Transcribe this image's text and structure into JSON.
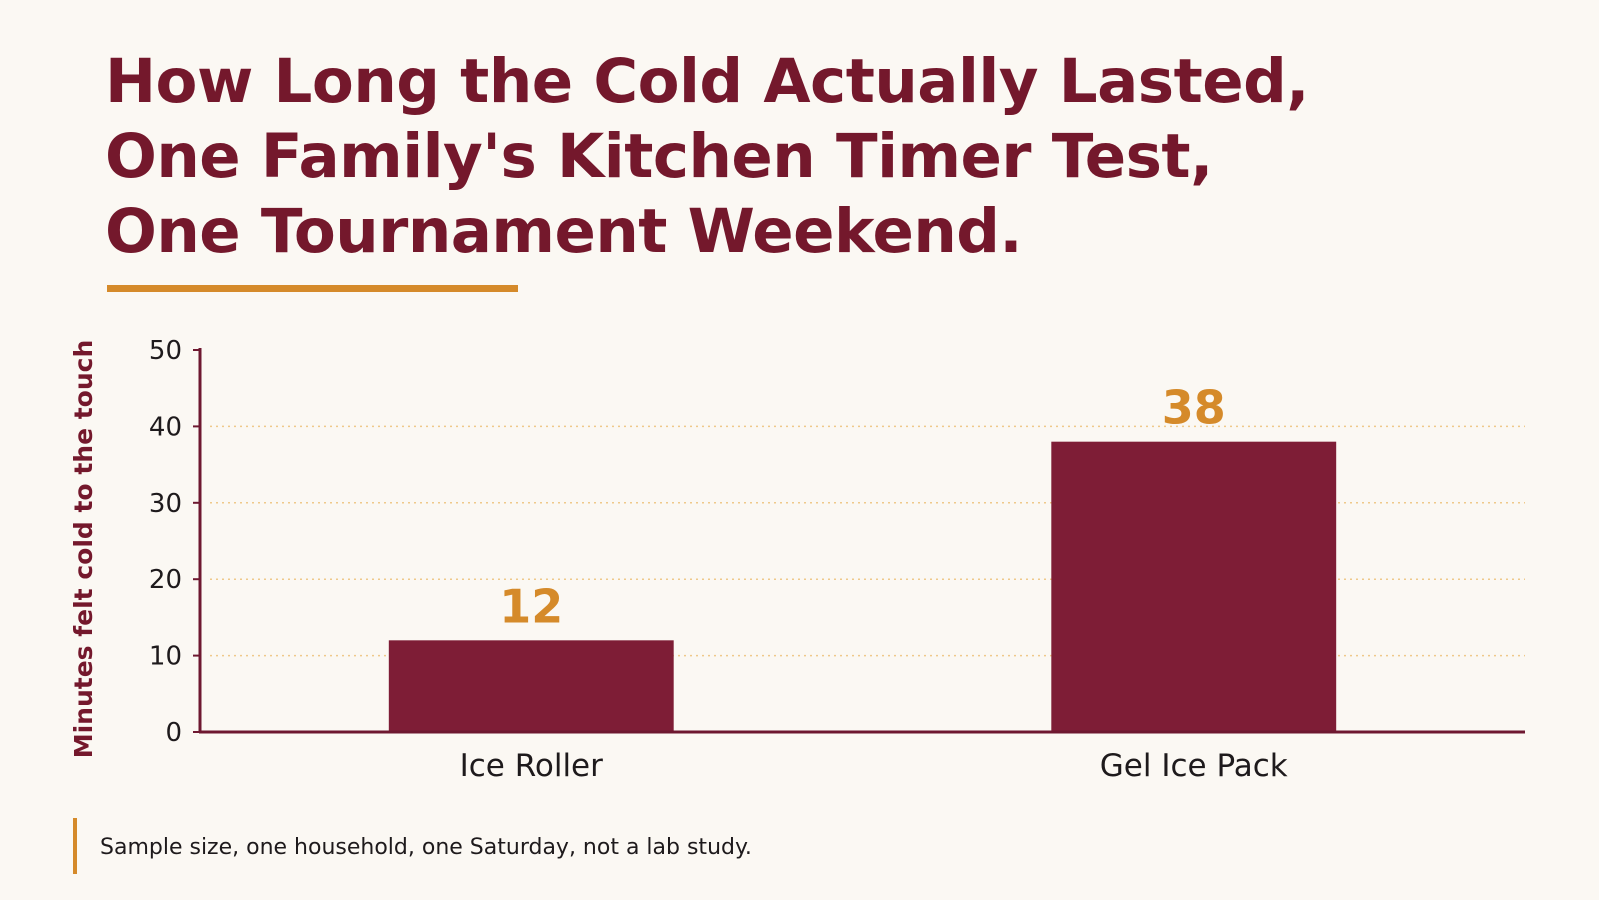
{
  "title_lines": [
    "How Long the Cold Actually Lasted,",
    "One Family's Kitchen Timer Test,",
    "One Tournament Weekend."
  ],
  "footnote": "Sample size, one household, one Saturday, not a lab study.",
  "colors": {
    "background": "#FBF8F3",
    "bar": "#7E1D36",
    "accent": "#D58A2A",
    "title": "#74182C",
    "axis": "#6E1830",
    "grid": "#EFC98A",
    "text": "#1E1A1C"
  },
  "chart_data": {
    "type": "bar",
    "title": "How Long the Cold Actually Lasted, One Family's Kitchen Timer Test, One Tournament Weekend.",
    "categories": [
      "Ice Roller",
      "Gel Ice Pack"
    ],
    "values": [
      12,
      38
    ],
    "data_labels": [
      "12",
      "38"
    ],
    "xlabel": "",
    "ylabel": "Minutes felt cold to the touch",
    "ylim": [
      0,
      50
    ],
    "yticks": [
      0,
      10,
      20,
      30,
      40,
      50
    ],
    "grid": "horizontal dotted",
    "legend": "none"
  }
}
